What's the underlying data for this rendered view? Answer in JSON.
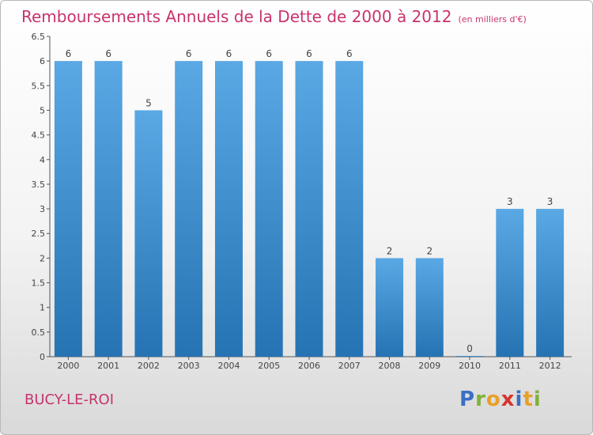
{
  "header": {
    "title": "Remboursements Annuels de la Dette de 2000 à 2012",
    "subtitle": "(en milliers d'€)"
  },
  "footer": {
    "town": "BUCY-LE-ROI",
    "logo": [
      "P",
      "r",
      "o",
      "x",
      "i",
      "t",
      "i"
    ],
    "logo_colors": [
      "#3b6fc4",
      "#7fb23a",
      "#e8a02a",
      "#d8342c",
      "#3b6fc4",
      "#e8a02a",
      "#7fb23a"
    ]
  },
  "colors": {
    "bar": "#4a99d9",
    "bar_dark": "#2b78b8",
    "title": "#c8336d"
  },
  "chart_data": {
    "type": "bar",
    "title": "Remboursements Annuels de la Dette de 2000 à 2012",
    "subtitle": "(en milliers d'€)",
    "categories": [
      "2000",
      "2001",
      "2002",
      "2003",
      "2004",
      "2005",
      "2006",
      "2007",
      "2008",
      "2009",
      "2010",
      "2011",
      "2012"
    ],
    "values": [
      6,
      6,
      5,
      6,
      6,
      6,
      6,
      6,
      2,
      2,
      0,
      3,
      3
    ],
    "value_labels": [
      "6",
      "6",
      "5",
      "6",
      "6",
      "6",
      "6",
      "6",
      "2",
      "2",
      "0",
      "3",
      "3"
    ],
    "ylim": [
      0,
      6.5
    ],
    "yticks": [
      "0",
      "0.5",
      "1",
      "1.5",
      "2",
      "2.5",
      "3",
      "3.5",
      "4",
      "4.5",
      "5",
      "5.5",
      "6",
      "6.5"
    ],
    "ytick_values": [
      0,
      0.5,
      1,
      1.5,
      2,
      2.5,
      3,
      3.5,
      4,
      4.5,
      5,
      5.5,
      6,
      6.5
    ],
    "grid": false,
    "xlabel": "",
    "ylabel": ""
  }
}
